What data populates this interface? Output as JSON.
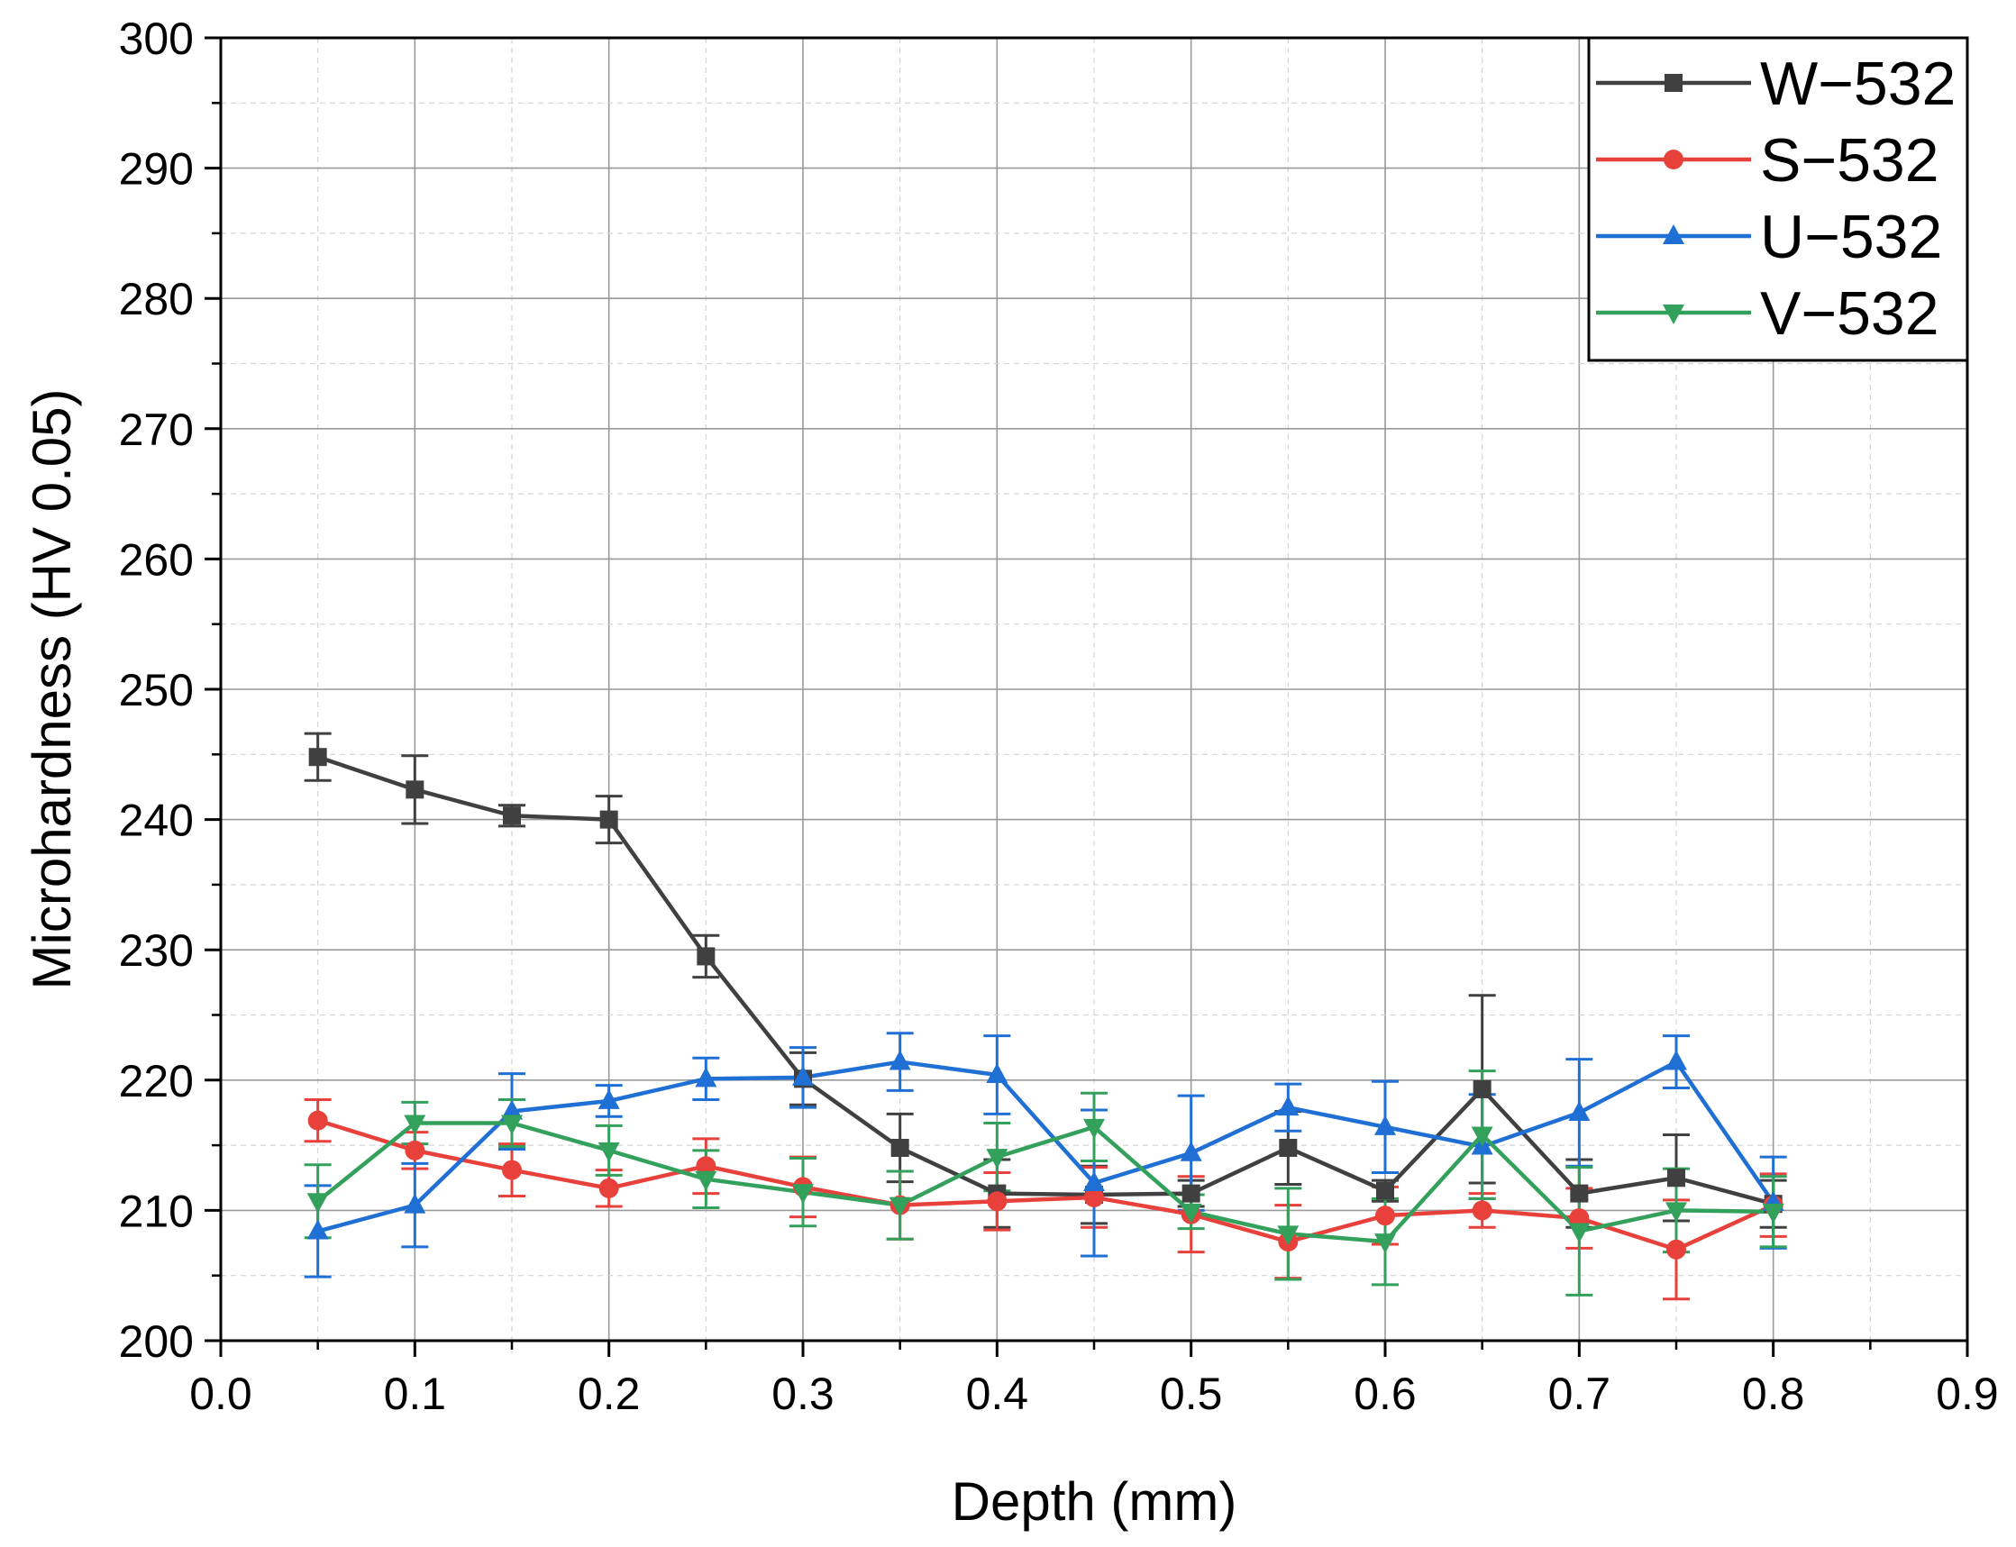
{
  "chart_data": {
    "type": "line",
    "title": "",
    "xlabel": "Depth (mm)",
    "ylabel": "Microhardness (HV 0.05)",
    "xlim": [
      0.0,
      0.9
    ],
    "ylim": [
      200,
      300
    ],
    "xticks": [
      0.0,
      0.1,
      0.2,
      0.3,
      0.4,
      0.5,
      0.6,
      0.7,
      0.8,
      0.9
    ],
    "yticks": [
      200,
      210,
      220,
      230,
      240,
      250,
      260,
      270,
      280,
      290,
      300
    ],
    "xtick_labels": [
      "0.0",
      "0.1",
      "0.2",
      "0.3",
      "0.4",
      "0.5",
      "0.6",
      "0.7",
      "0.8",
      "0.9"
    ],
    "ytick_labels": [
      "200",
      "210",
      "220",
      "230",
      "240",
      "250",
      "260",
      "270",
      "280",
      "290",
      "300"
    ],
    "grid": true,
    "legend_position": "top-right",
    "x": [
      0.05,
      0.1,
      0.15,
      0.2,
      0.25,
      0.3,
      0.35,
      0.4,
      0.45,
      0.5,
      0.55,
      0.6,
      0.65,
      0.7,
      0.75,
      0.8
    ],
    "series": [
      {
        "name": "W−532",
        "color": "#404040",
        "marker": "square",
        "values": [
          244.8,
          242.3,
          240.3,
          240.0,
          229.5,
          220.1,
          214.8,
          211.3,
          211.2,
          211.3,
          214.8,
          211.5,
          219.3,
          211.3,
          212.5,
          210.5
        ],
        "errors": [
          1.8,
          2.6,
          0.8,
          1.8,
          1.6,
          2.0,
          2.6,
          2.6,
          2.2,
          1.0,
          2.8,
          0.8,
          7.2,
          2.6,
          3.3,
          1.8
        ]
      },
      {
        "name": "S−532",
        "color": "#e8413c",
        "marker": "circle",
        "values": [
          216.9,
          214.6,
          213.1,
          211.7,
          213.4,
          211.8,
          210.4,
          210.7,
          211.0,
          209.7,
          207.6,
          209.6,
          210.0,
          209.4,
          207.0,
          210.4
        ],
        "errors": [
          1.6,
          1.4,
          2.0,
          1.4,
          2.1,
          2.3,
          2.6,
          2.2,
          2.3,
          2.9,
          2.8,
          2.2,
          1.3,
          2.3,
          3.8,
          2.4
        ]
      },
      {
        "name": "U−532",
        "color": "#1f6fd4",
        "marker": "triangle-up",
        "values": [
          208.4,
          210.4,
          217.6,
          218.4,
          220.1,
          220.2,
          221.4,
          220.4,
          212.1,
          214.4,
          217.9,
          216.4,
          214.9,
          217.5,
          221.4,
          210.6
        ],
        "errors": [
          3.5,
          3.2,
          2.9,
          1.2,
          1.6,
          2.3,
          2.2,
          3.0,
          5.6,
          4.4,
          1.8,
          3.5,
          4.0,
          4.1,
          2.0,
          3.5
        ]
      },
      {
        "name": "V−532",
        "color": "#33a05c",
        "marker": "triangle-down",
        "values": [
          210.7,
          216.7,
          216.7,
          214.6,
          212.4,
          211.4,
          210.4,
          214.1,
          216.4,
          209.9,
          208.2,
          207.6,
          215.8,
          208.4,
          210.0,
          209.9
        ],
        "errors": [
          2.8,
          1.6,
          1.8,
          1.9,
          2.2,
          2.6,
          2.6,
          2.6,
          2.6,
          1.3,
          3.5,
          3.3,
          4.9,
          4.9,
          3.2,
          2.7
        ]
      }
    ]
  }
}
